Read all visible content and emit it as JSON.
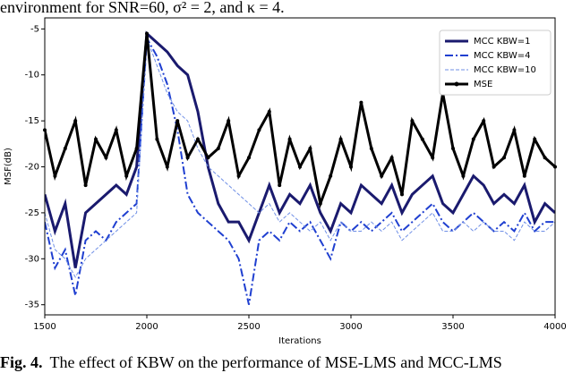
{
  "caption_top": "environment for SNR=60, σ² = 2, and κ = 4.",
  "caption": {
    "label": "Fig. 4.",
    "text": "The effect of KBW on the performance of MSE-LMS and MCC-LMS"
  },
  "chart_data": {
    "type": "line",
    "x_label": "Iterations",
    "y_label": "MSF(dB)",
    "x": [
      1500,
      1550,
      1600,
      1650,
      1700,
      1750,
      1800,
      1850,
      1900,
      1950,
      2000,
      2050,
      2100,
      2150,
      2200,
      2250,
      2300,
      2350,
      2400,
      2450,
      2500,
      2550,
      2600,
      2650,
      2700,
      2750,
      2800,
      2850,
      2900,
      2950,
      3000,
      3050,
      3100,
      3150,
      3200,
      3250,
      3300,
      3350,
      3400,
      3450,
      3500,
      3550,
      3600,
      3650,
      3700,
      3750,
      3800,
      3850,
      3900,
      3950,
      4000
    ],
    "series": [
      {
        "name": "MCC KBW=1",
        "color": "#1a1a6e",
        "style": "solid",
        "width": 3,
        "values": [
          -23,
          -27,
          -24,
          -31,
          -25,
          -24,
          -23,
          -22,
          -23,
          -20,
          -5.5,
          -6.5,
          -7.5,
          -9,
          -10,
          -14,
          -20,
          -24,
          -26,
          -26,
          -28,
          -25,
          -22,
          -25,
          -23,
          -24,
          -22,
          -25,
          -27,
          -24,
          -25,
          -22,
          -23,
          -24,
          -22,
          -25,
          -23,
          -22,
          -21,
          -24,
          -25,
          -23,
          -21,
          -22,
          -24,
          -23,
          -24,
          -22,
          -26,
          -24,
          -25
        ]
      },
      {
        "name": "MCC KBW=4",
        "color": "#1f3fd0",
        "style": "dashdot",
        "width": 2,
        "values": [
          -26,
          -31,
          -29,
          -34,
          -28,
          -27,
          -28,
          -26,
          -25,
          -24,
          -6,
          -8,
          -11,
          -16,
          -23,
          -25,
          -26,
          -27,
          -28,
          -30,
          -35,
          -28,
          -27,
          -28,
          -26,
          -27,
          -26,
          -28,
          -30,
          -26,
          -27,
          -26,
          -27,
          -26,
          -25,
          -27,
          -26,
          -25,
          -24,
          -26,
          -27,
          -26,
          -25,
          -26,
          -27,
          -26,
          -27,
          -25,
          -27,
          -26,
          -26
        ]
      },
      {
        "name": "MCC KBW=10",
        "color": "#6f8fe6",
        "style": "dashed",
        "width": 1,
        "values": [
          -25,
          -29,
          -30,
          -32,
          -30,
          -29,
          -28,
          -27,
          -26,
          -25,
          -6,
          -9,
          -12,
          -14,
          -15,
          -18,
          -20,
          -21,
          -22,
          -23,
          -24,
          -25,
          -24,
          -26,
          -25,
          -26,
          -27,
          -26,
          -28,
          -26,
          -27,
          -27,
          -26,
          -27,
          -26,
          -28,
          -27,
          -26,
          -25,
          -27,
          -27,
          -26,
          -27,
          -26,
          -27,
          -27,
          -28,
          -26,
          -27,
          -27,
          -26
        ]
      },
      {
        "name": "MSE",
        "color": "#000000",
        "style": "solid",
        "width": 3,
        "marker": "circle",
        "values": [
          -16,
          -21,
          -18,
          -15,
          -22,
          -17,
          -19,
          -16,
          -21,
          -18,
          -5.5,
          -17,
          -20,
          -15,
          -19,
          -17,
          -19,
          -18,
          -15,
          -21,
          -19,
          -16,
          -14,
          -22,
          -17,
          -20,
          -18,
          -24,
          -21,
          -17,
          -20,
          -13,
          -18,
          -21,
          -19,
          -23,
          -15,
          -17,
          -19,
          -12,
          -18,
          -21,
          -17,
          -15,
          -20,
          -19,
          -16,
          -21,
          -17,
          -19,
          -20
        ]
      }
    ],
    "xlim": [
      1500,
      4000
    ],
    "ylim": [
      -36.1,
      -3.8
    ],
    "xticks": [
      1500,
      2000,
      2500,
      3000,
      3500,
      4000
    ],
    "yticks": [
      -35,
      -30,
      -25,
      -20,
      -15,
      -10,
      -5
    ],
    "legend": "upper right"
  }
}
